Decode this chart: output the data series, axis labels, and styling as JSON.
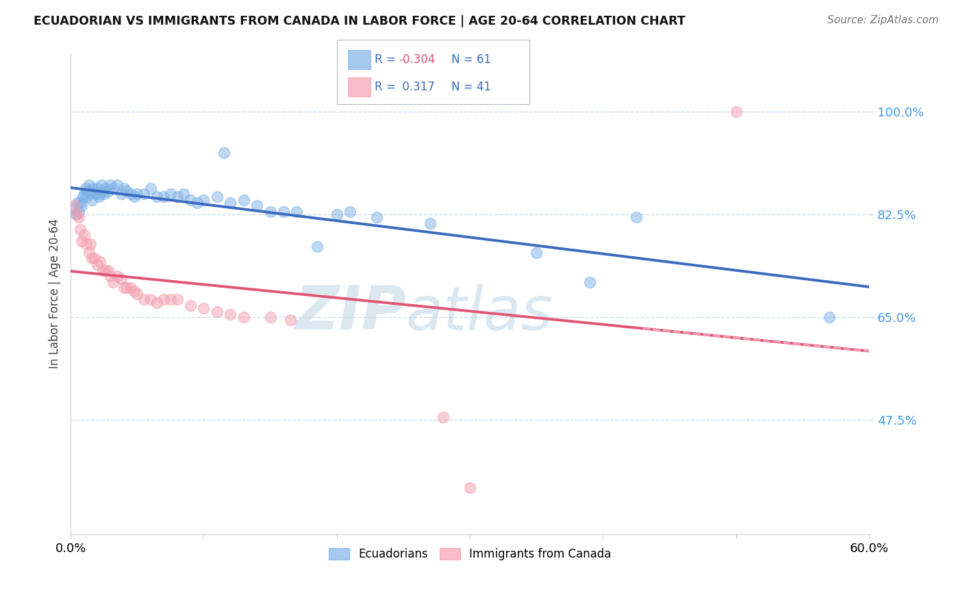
{
  "title": "ECUADORIAN VS IMMIGRANTS FROM CANADA IN LABOR FORCE | AGE 20-64 CORRELATION CHART",
  "source": "Source: ZipAtlas.com",
  "ylabel": "In Labor Force | Age 20-64",
  "xlim": [
    0.0,
    0.6
  ],
  "ylim": [
    0.28,
    1.1
  ],
  "ytick_positions": [
    0.475,
    0.65,
    0.825,
    1.0
  ],
  "ytick_labels": [
    "47.5%",
    "65.0%",
    "82.5%",
    "100.0%"
  ],
  "xtick_positions": [
    0.0,
    0.1,
    0.2,
    0.3,
    0.4,
    0.5,
    0.6
  ],
  "xtick_labels": [
    "0.0%",
    "",
    "",
    "",
    "",
    "",
    "60.0%"
  ],
  "legend_r_blue": "-0.304",
  "legend_n_blue": "61",
  "legend_r_pink": "0.317",
  "legend_n_pink": "41",
  "blue_color": "#7fb3e8",
  "pink_color": "#f4a0b0",
  "trendline_blue_color": "#3a6bbf",
  "trendline_pink_color": "#e05575",
  "trendline_pink_dashed_color": "#f0a0b8",
  "watermark_zip": "ZIP",
  "watermark_atlas": "atlas",
  "blue_scatter": [
    [
      0.003,
      0.835
    ],
    [
      0.004,
      0.825
    ],
    [
      0.005,
      0.845
    ],
    [
      0.006,
      0.83
    ],
    [
      0.007,
      0.845
    ],
    [
      0.008,
      0.84
    ],
    [
      0.009,
      0.855
    ],
    [
      0.01,
      0.86
    ],
    [
      0.011,
      0.87
    ],
    [
      0.012,
      0.855
    ],
    [
      0.013,
      0.865
    ],
    [
      0.014,
      0.875
    ],
    [
      0.015,
      0.86
    ],
    [
      0.016,
      0.85
    ],
    [
      0.017,
      0.87
    ],
    [
      0.018,
      0.865
    ],
    [
      0.019,
      0.86
    ],
    [
      0.02,
      0.87
    ],
    [
      0.021,
      0.855
    ],
    [
      0.022,
      0.86
    ],
    [
      0.023,
      0.875
    ],
    [
      0.024,
      0.865
    ],
    [
      0.025,
      0.86
    ],
    [
      0.026,
      0.87
    ],
    [
      0.028,
      0.865
    ],
    [
      0.03,
      0.875
    ],
    [
      0.032,
      0.87
    ],
    [
      0.035,
      0.875
    ],
    [
      0.038,
      0.86
    ],
    [
      0.04,
      0.87
    ],
    [
      0.042,
      0.865
    ],
    [
      0.045,
      0.86
    ],
    [
      0.048,
      0.855
    ],
    [
      0.05,
      0.86
    ],
    [
      0.055,
      0.86
    ],
    [
      0.06,
      0.87
    ],
    [
      0.065,
      0.855
    ],
    [
      0.07,
      0.855
    ],
    [
      0.075,
      0.86
    ],
    [
      0.08,
      0.855
    ],
    [
      0.085,
      0.86
    ],
    [
      0.09,
      0.85
    ],
    [
      0.095,
      0.845
    ],
    [
      0.1,
      0.85
    ],
    [
      0.11,
      0.855
    ],
    [
      0.115,
      0.93
    ],
    [
      0.12,
      0.845
    ],
    [
      0.13,
      0.85
    ],
    [
      0.14,
      0.84
    ],
    [
      0.15,
      0.83
    ],
    [
      0.16,
      0.83
    ],
    [
      0.17,
      0.83
    ],
    [
      0.185,
      0.77
    ],
    [
      0.2,
      0.825
    ],
    [
      0.21,
      0.83
    ],
    [
      0.23,
      0.82
    ],
    [
      0.27,
      0.81
    ],
    [
      0.35,
      0.76
    ],
    [
      0.39,
      0.71
    ],
    [
      0.425,
      0.82
    ],
    [
      0.57,
      0.65
    ]
  ],
  "pink_scatter": [
    [
      0.003,
      0.84
    ],
    [
      0.005,
      0.825
    ],
    [
      0.006,
      0.82
    ],
    [
      0.007,
      0.8
    ],
    [
      0.008,
      0.78
    ],
    [
      0.01,
      0.79
    ],
    [
      0.012,
      0.775
    ],
    [
      0.014,
      0.76
    ],
    [
      0.015,
      0.775
    ],
    [
      0.016,
      0.75
    ],
    [
      0.018,
      0.75
    ],
    [
      0.02,
      0.74
    ],
    [
      0.022,
      0.745
    ],
    [
      0.024,
      0.73
    ],
    [
      0.026,
      0.73
    ],
    [
      0.028,
      0.73
    ],
    [
      0.03,
      0.72
    ],
    [
      0.032,
      0.71
    ],
    [
      0.035,
      0.72
    ],
    [
      0.038,
      0.715
    ],
    [
      0.04,
      0.7
    ],
    [
      0.042,
      0.7
    ],
    [
      0.045,
      0.7
    ],
    [
      0.048,
      0.695
    ],
    [
      0.05,
      0.69
    ],
    [
      0.055,
      0.68
    ],
    [
      0.06,
      0.68
    ],
    [
      0.065,
      0.675
    ],
    [
      0.07,
      0.68
    ],
    [
      0.075,
      0.68
    ],
    [
      0.08,
      0.68
    ],
    [
      0.09,
      0.67
    ],
    [
      0.1,
      0.665
    ],
    [
      0.11,
      0.66
    ],
    [
      0.12,
      0.655
    ],
    [
      0.13,
      0.65
    ],
    [
      0.15,
      0.65
    ],
    [
      0.165,
      0.645
    ],
    [
      0.28,
      0.48
    ],
    [
      0.3,
      0.36
    ],
    [
      0.5,
      1.0
    ]
  ]
}
